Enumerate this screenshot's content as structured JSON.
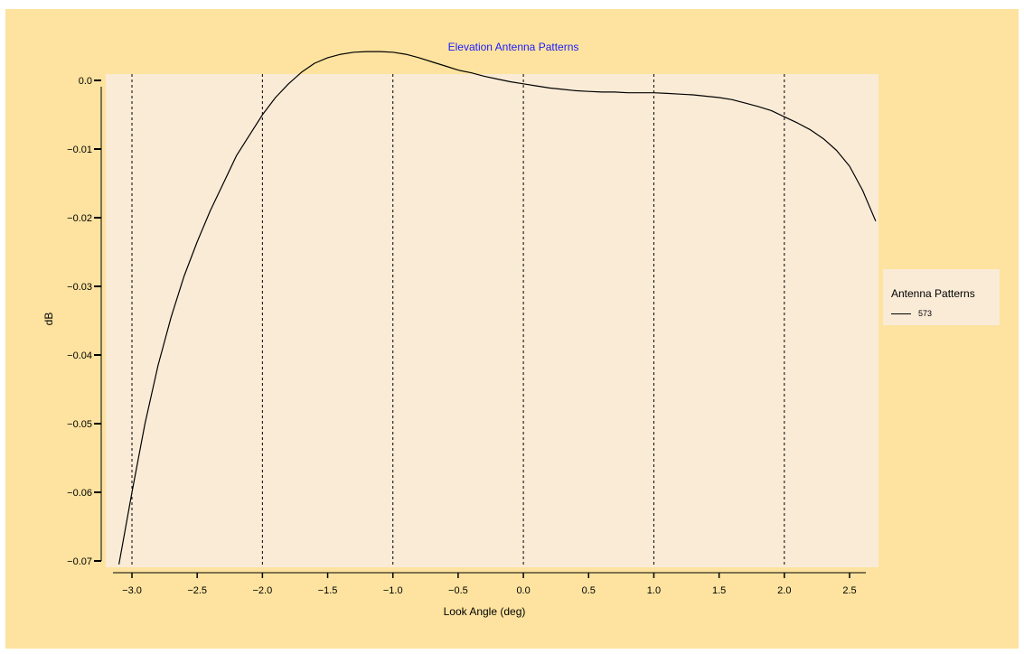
{
  "chart_data": {
    "type": "line",
    "title": "Elevation Antenna Patterns",
    "xlabel": "Look Angle (deg)",
    "ylabel": "dB",
    "xlim": [
      -3.17,
      2.8
    ],
    "ylim": [
      -0.07,
      0.0045
    ],
    "xticks": [
      -3.0,
      -2.5,
      -2.0,
      -1.5,
      -1.0,
      -0.5,
      0.0,
      0.5,
      1.0,
      1.5,
      2.0,
      2.5
    ],
    "xtick_labels": [
      "−3.0",
      "−2.5",
      "−2.0",
      "−1.5",
      "−1.0",
      "−0.5",
      "0.0",
      "0.5",
      "1.0",
      "1.5",
      "2.0",
      "2.5"
    ],
    "yticks": [
      0.0,
      -0.01,
      -0.02,
      -0.03,
      -0.04,
      -0.05,
      -0.06,
      -0.07
    ],
    "ytick_labels": [
      "0.0",
      "−0.01",
      "−0.02",
      "−0.03",
      "−0.04",
      "−0.05",
      "−0.06",
      "−0.07"
    ],
    "vertical_gridlines_at": [
      -3.0,
      -2.0,
      -1.0,
      0.0,
      1.0,
      2.0
    ],
    "legend": {
      "title": "Antenna Patterns",
      "placement": "right"
    },
    "series": [
      {
        "name": "573",
        "color": "#000000",
        "x": [
          -3.1,
          -3.0,
          -2.9,
          -2.8,
          -2.7,
          -2.6,
          -2.5,
          -2.4,
          -2.3,
          -2.2,
          -2.1,
          -2.0,
          -1.9,
          -1.8,
          -1.7,
          -1.6,
          -1.5,
          -1.4,
          -1.3,
          -1.2,
          -1.1,
          -1.0,
          -0.9,
          -0.8,
          -0.7,
          -0.6,
          -0.5,
          -0.4,
          -0.3,
          -0.2,
          -0.1,
          0.0,
          0.1,
          0.2,
          0.3,
          0.4,
          0.5,
          0.6,
          0.7,
          0.8,
          0.9,
          1.0,
          1.1,
          1.2,
          1.3,
          1.4,
          1.5,
          1.6,
          1.7,
          1.8,
          1.9,
          2.0,
          2.1,
          2.2,
          2.3,
          2.4,
          2.5,
          2.6,
          2.7
        ],
        "values": [
          -0.0705,
          -0.06,
          -0.05,
          -0.0415,
          -0.0345,
          -0.0285,
          -0.0235,
          -0.019,
          -0.015,
          -0.011,
          -0.008,
          -0.005,
          -0.0025,
          -0.0005,
          0.0012,
          0.0025,
          0.0033,
          0.0038,
          0.0041,
          0.0042,
          0.0042,
          0.0041,
          0.0038,
          0.0033,
          0.0027,
          0.0021,
          0.0015,
          0.0011,
          0.0006,
          0.0002,
          -0.0002,
          -0.0005,
          -0.0008,
          -0.0011,
          -0.0013,
          -0.0015,
          -0.0016,
          -0.0017,
          -0.0017,
          -0.0018,
          -0.0018,
          -0.0018,
          -0.0019,
          -0.002,
          -0.0021,
          -0.0023,
          -0.0025,
          -0.0028,
          -0.0033,
          -0.0038,
          -0.0044,
          -0.0053,
          -0.0062,
          -0.0072,
          -0.0085,
          -0.0102,
          -0.0125,
          -0.016,
          -0.0205
        ]
      }
    ]
  }
}
